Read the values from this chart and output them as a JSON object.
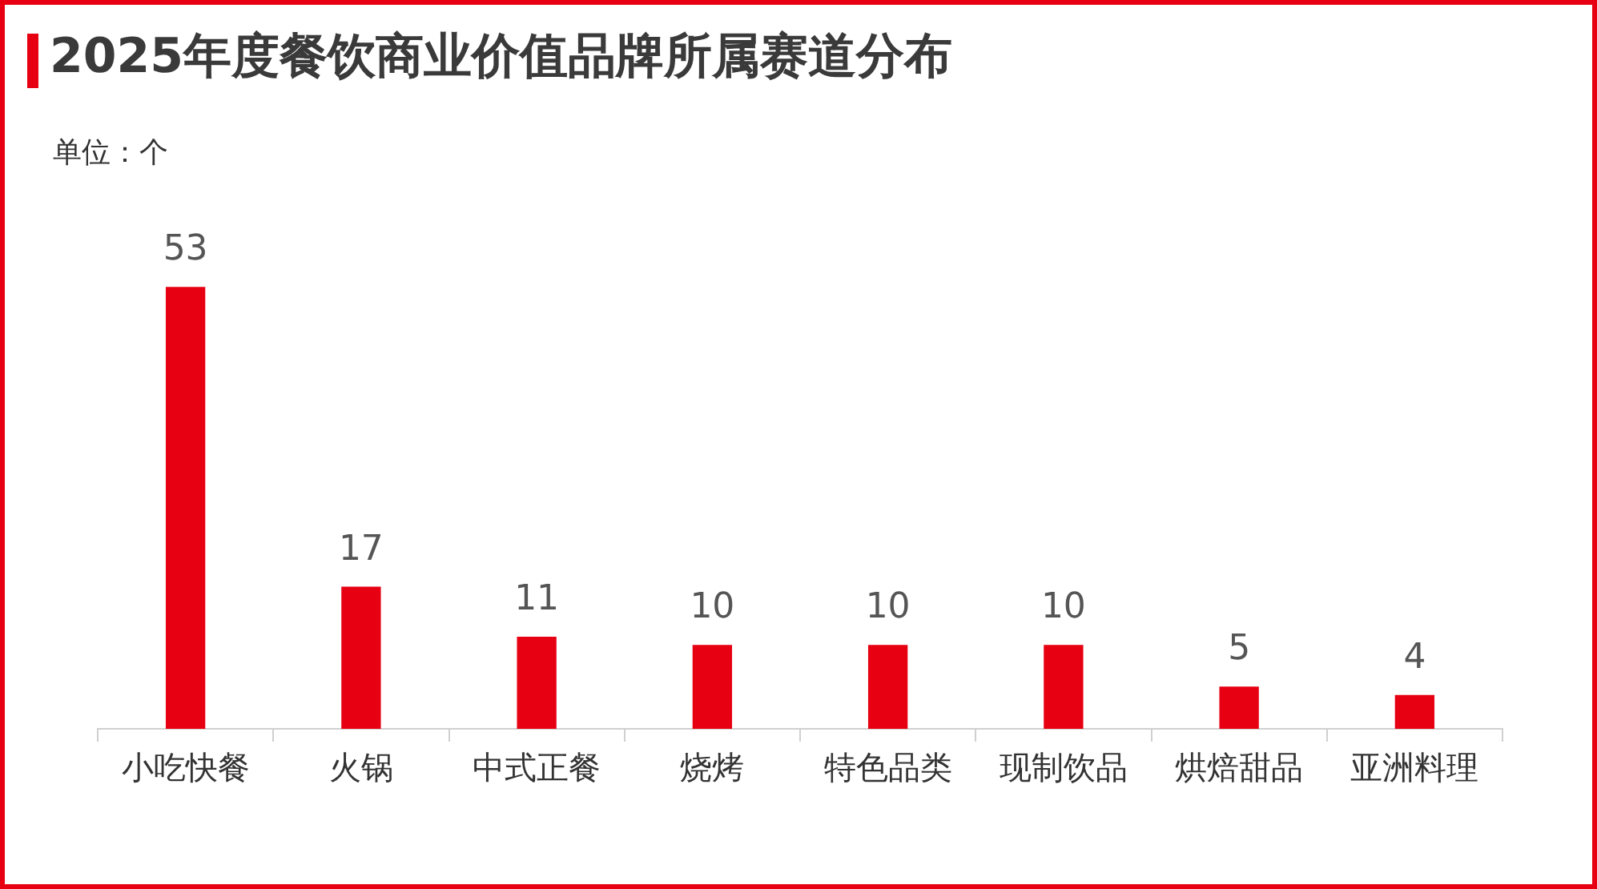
{
  "chart_data": {
    "type": "bar",
    "title": "2025年度餐饮商业价值品牌所属赛道分布",
    "annotations": [
      "单位：个"
    ],
    "categories": [
      "小吃快餐",
      "火锅",
      "中式正餐",
      "烧烤",
      "特色品类",
      "现制饮品",
      "烘焙甜品",
      "亚洲料理"
    ],
    "values": [
      53,
      17,
      11,
      10,
      10,
      10,
      5,
      4
    ],
    "color": "#e60012",
    "data_labels": true,
    "tick_labels": "x"
  }
}
